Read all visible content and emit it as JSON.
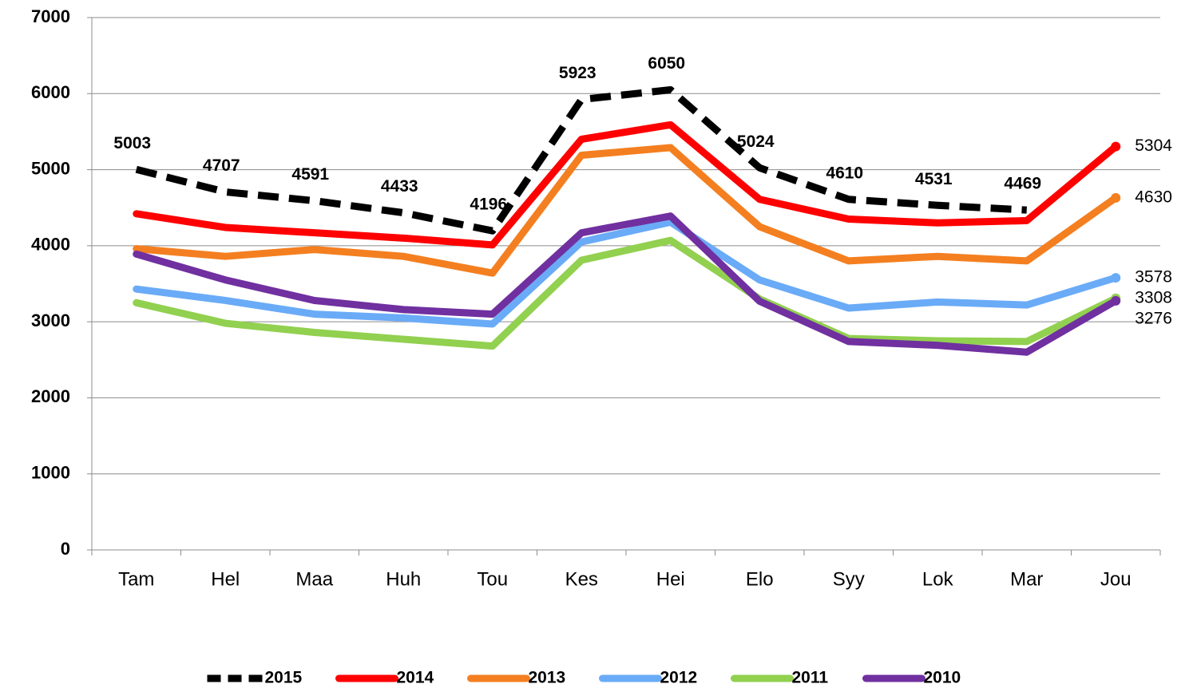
{
  "chart_data": {
    "type": "line",
    "categories": [
      "Tam",
      "Hel",
      "Maa",
      "Huh",
      "Tou",
      "Kes",
      "Hei",
      "Elo",
      "Syy",
      "Lok",
      "Mar",
      "Jou"
    ],
    "ylim": [
      0,
      7000
    ],
    "yticks": [
      0,
      1000,
      2000,
      3000,
      4000,
      5000,
      6000,
      7000
    ],
    "grid": true,
    "legend": "bottom",
    "series": [
      {
        "name": "2015",
        "color": "#000000",
        "dash": true,
        "labels": "all",
        "values": [
          5003,
          4707,
          4591,
          4433,
          4196,
          5923,
          6050,
          5024,
          4610,
          4531,
          4469,
          null
        ]
      },
      {
        "name": "2014",
        "color": "#ff0000",
        "dash": false,
        "labels": "last",
        "values": [
          4420,
          4240,
          4170,
          4100,
          4010,
          5400,
          5590,
          4610,
          4350,
          4300,
          4330,
          5304
        ]
      },
      {
        "name": "2013",
        "color": "#f47f20",
        "dash": false,
        "labels": "last",
        "values": [
          3960,
          3860,
          3950,
          3860,
          3640,
          5190,
          5290,
          4250,
          3800,
          3860,
          3800,
          4630
        ]
      },
      {
        "name": "2012",
        "color": "#6aabf7",
        "dash": false,
        "labels": "last",
        "values": [
          3430,
          3280,
          3100,
          3050,
          2970,
          4050,
          4310,
          3550,
          3180,
          3260,
          3220,
          3578
        ]
      },
      {
        "name": "2011",
        "color": "#92d050",
        "dash": false,
        "labels": "last",
        "values": [
          3250,
          2980,
          2860,
          2770,
          2680,
          3810,
          4070,
          3300,
          2780,
          2750,
          2740,
          3308
        ]
      },
      {
        "name": "2010",
        "color": "#7030a0",
        "dash": false,
        "labels": "last",
        "values": [
          3890,
          3550,
          3280,
          3160,
          3100,
          4170,
          4390,
          3270,
          2740,
          2690,
          2600,
          3276
        ]
      }
    ]
  }
}
